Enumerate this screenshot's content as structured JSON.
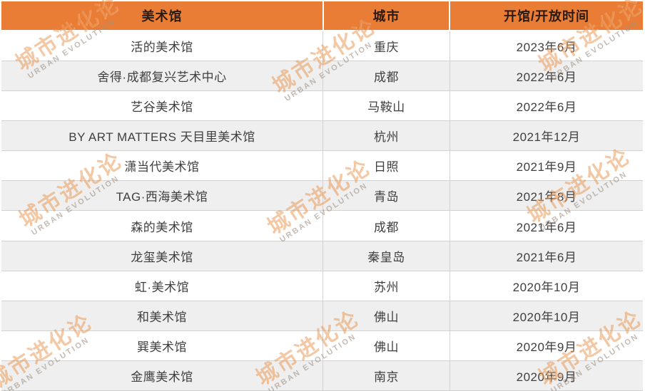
{
  "chart_data": {
    "type": "table",
    "headers": [
      "美术馆",
      "城市",
      "开馆/开放时间"
    ],
    "rows": [
      [
        "活的美术馆",
        "重庆",
        "2023年6月"
      ],
      [
        "舍得·成都复兴艺术中心",
        "成都",
        "2022年6月"
      ],
      [
        "艺谷美术馆",
        "马鞍山",
        "2022年6月"
      ],
      [
        "BY ART MATTERS 天目里美术馆",
        "杭州",
        "2021年12月"
      ],
      [
        "潇当代美术馆",
        "日照",
        "2021年9月"
      ],
      [
        "TAG·西海美术馆",
        "青岛",
        "2021年8月"
      ],
      [
        "森的美术馆",
        "成都",
        "2021年6月"
      ],
      [
        "龙玺美术馆",
        "秦皇岛",
        "2021年6月"
      ],
      [
        "虹·美术馆",
        "苏州",
        "2020年10月"
      ],
      [
        "和美术馆",
        "佛山",
        "2020年10月"
      ],
      [
        "巽美术馆",
        "佛山",
        "2020年9月"
      ],
      [
        "金鹰美术馆",
        "南京",
        "2020年9月"
      ]
    ]
  },
  "watermark": {
    "cn": "城市进化论",
    "en": "URBAN EVOLUTION"
  },
  "colors": {
    "header_bg": "#EA7D36",
    "header_text": "#2B1A10",
    "row_alt_bg": "#EFEFEF",
    "row_bg": "#FFFFFF",
    "border": "#D2D2D2",
    "body_text": "#3F3F3F",
    "watermark_orange": "#E27C29"
  }
}
